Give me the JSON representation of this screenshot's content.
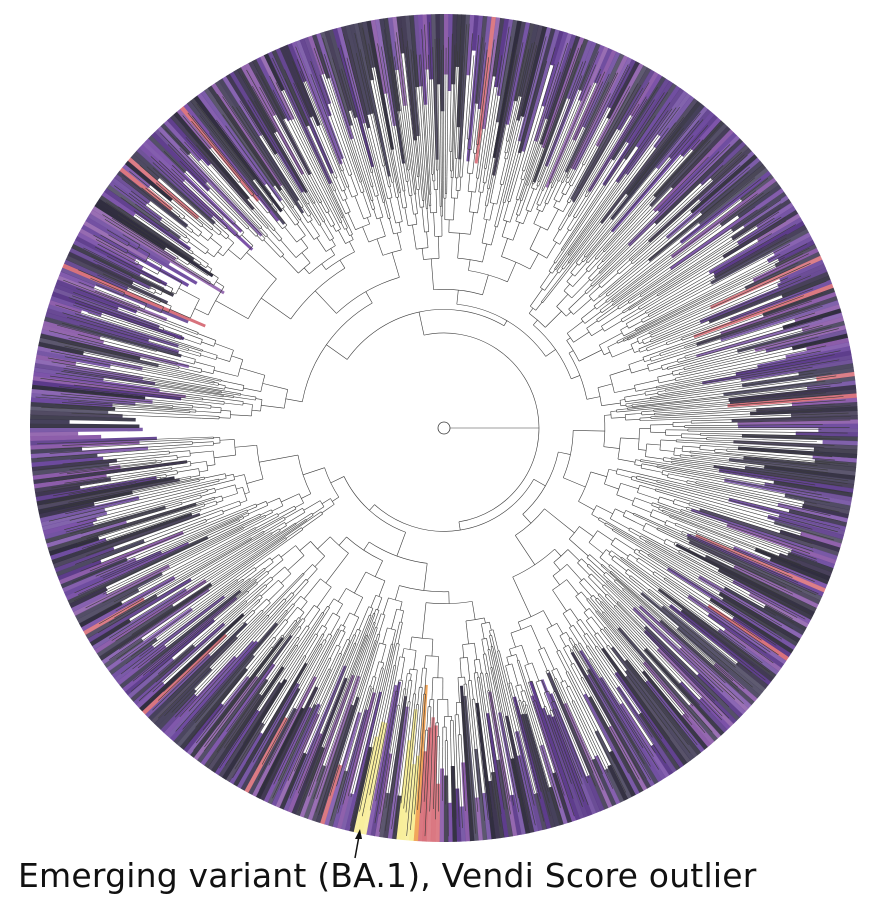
{
  "figure": {
    "annotation": "Emerging variant (BA.1), Vendi Score outlier",
    "colors": {
      "leaf_palette": [
        "#5b3a8a",
        "#6d4a9e",
        "#3d3550",
        "#7b52a8",
        "#45405a",
        "#8a5aa8",
        "#2f2c3e"
      ],
      "highlight_yellow": "#f8ee96",
      "highlight_orange": "#f0a050",
      "highlight_pink": "#d8707a",
      "branch": "#3a3a3a"
    }
  }
}
